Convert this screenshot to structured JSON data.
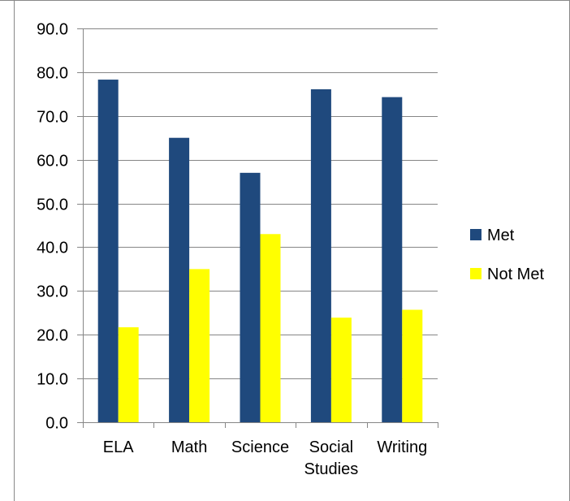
{
  "chart_data": {
    "type": "bar",
    "categories": [
      "ELA",
      "Math",
      "Science",
      "Social Studies",
      "Writing"
    ],
    "category_label_lines": [
      [
        "ELA"
      ],
      [
        "Math"
      ],
      [
        "Science"
      ],
      [
        "Social",
        "Studies"
      ],
      [
        "Writing"
      ]
    ],
    "series": [
      {
        "name": "Met",
        "values": [
          78.3,
          65.0,
          57.0,
          76.1,
          74.3
        ],
        "color": "#1f497d"
      },
      {
        "name": "Not Met",
        "values": [
          21.7,
          35.0,
          43.0,
          23.9,
          25.7
        ],
        "color": "#ffff00"
      }
    ],
    "yticks": [
      "0.0",
      "10.0",
      "20.0",
      "30.0",
      "40.0",
      "50.0",
      "60.0",
      "70.0",
      "80.0",
      "90.0"
    ],
    "ylim": [
      0,
      90
    ],
    "title": "",
    "xlabel": "",
    "ylabel": "",
    "grid": true,
    "legend_position": "right"
  }
}
